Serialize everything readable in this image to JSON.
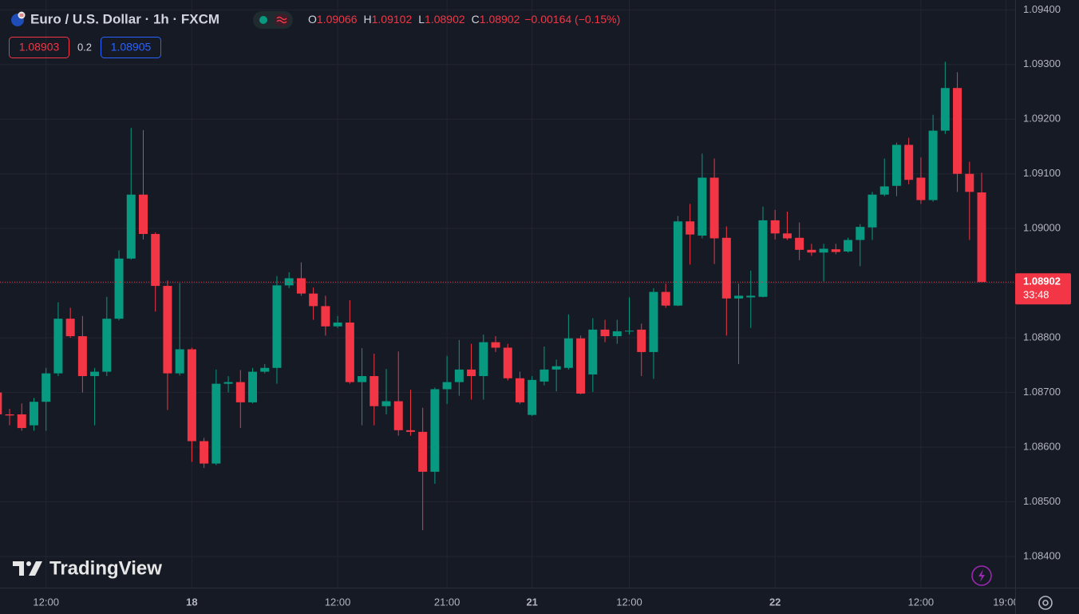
{
  "header": {
    "symbol": "Euro / U.S. Dollar · 1h · FXCM",
    "ohlc": [
      {
        "label": "O",
        "value": "1.09066"
      },
      {
        "label": "H",
        "value": "1.09102"
      },
      {
        "label": "L",
        "value": "1.08902"
      },
      {
        "label": "C",
        "value": "1.08902"
      }
    ],
    "change": "−0.00164 (−0.15%)",
    "bid": "1.08903",
    "spread": "0.2",
    "ask": "1.08905"
  },
  "logo": "TradingView",
  "chart_data": {
    "type": "candlestick",
    "categories": [
      null,
      null,
      null,
      null,
      "12:00",
      null,
      null,
      null,
      null,
      null,
      null,
      null,
      null,
      null,
      null,
      null,
      "18",
      null,
      null,
      null,
      null,
      null,
      null,
      null,
      null,
      null,
      null,
      null,
      "12:00",
      null,
      null,
      null,
      null,
      null,
      null,
      null,
      null,
      "21:00",
      null,
      null,
      null,
      null,
      null,
      null,
      "21",
      null,
      null,
      null,
      null,
      null,
      null,
      null,
      "12:00",
      null,
      null,
      null,
      null,
      null,
      null,
      null,
      null,
      null,
      null,
      null,
      "22",
      null,
      null,
      null,
      null,
      null,
      null,
      null,
      null,
      null,
      null,
      null,
      "12:00",
      null,
      null,
      null,
      null,
      null,
      null,
      "19:00"
    ],
    "open": [
      1.087,
      1.0866,
      1.0866,
      1.0864,
      1.08683,
      1.08735,
      1.08835,
      1.08803,
      1.0873,
      1.08738,
      1.08835,
      1.08945,
      1.09062,
      1.0899,
      1.08895,
      1.08735,
      1.08779,
      1.08611,
      1.0857,
      1.08716,
      1.08719,
      1.08682,
      1.08738,
      1.08745,
      1.08896,
      1.08909,
      1.08881,
      1.08858,
      1.08821,
      1.08828,
      1.08719,
      1.0873,
      1.08675,
      1.08684,
      1.08631,
      1.08628,
      1.08555,
      1.08706,
      1.08719,
      1.08742,
      1.0873,
      1.08792,
      1.08782,
      1.08726,
      1.08659,
      1.0872,
      1.08742,
      1.08745,
      1.08799,
      1.08733,
      1.08815,
      1.08803,
      1.08812,
      1.08815,
      1.08774,
      1.08884,
      1.08859,
      1.09013,
      1.08987,
      1.09093,
      1.08983,
      1.08872,
      1.08874,
      1.08875,
      1.09015,
      1.08991,
      1.08983,
      1.08961,
      1.08956,
      1.08962,
      1.08958,
      1.08979,
      1.09002,
      1.09062,
      1.09078,
      1.09153,
      1.09093,
      1.09052,
      1.09179,
      1.09257,
      1.091,
      1.09066,
      null,
      null
    ],
    "high": [
      1.0871,
      1.0867,
      1.0868,
      1.0869,
      1.08745,
      1.08865,
      1.08855,
      1.0884,
      1.08745,
      1.08875,
      1.0896,
      1.09184,
      1.0918,
      1.08993,
      1.08905,
      1.089,
      1.08782,
      1.08617,
      1.08742,
      1.0873,
      1.08741,
      1.08745,
      1.08752,
      1.08913,
      1.0892,
      1.08938,
      1.08892,
      1.08877,
      1.0884,
      1.08869,
      1.08781,
      1.08771,
      1.08743,
      1.08775,
      1.08705,
      1.08672,
      1.08709,
      1.08767,
      1.08796,
      1.08789,
      1.08806,
      1.08803,
      1.08789,
      1.08738,
      1.0873,
      1.08784,
      1.0876,
      1.08843,
      1.08804,
      1.08836,
      1.08833,
      1.08833,
      1.08874,
      1.08826,
      1.08891,
      1.08899,
      1.09023,
      1.09045,
      1.09137,
      1.09128,
      1.09004,
      1.08899,
      1.08923,
      1.0904,
      1.09034,
      1.09031,
      1.09011,
      1.08972,
      1.08972,
      1.08972,
      1.08983,
      1.09008,
      1.09067,
      1.09128,
      1.09157,
      1.09166,
      1.0913,
      1.09208,
      1.09305,
      1.09286,
      1.09122,
      1.09102,
      null,
      null
    ],
    "low": [
      1.0864,
      1.0864,
      1.0863,
      1.0863,
      1.0863,
      1.0873,
      1.088,
      1.087,
      1.0864,
      1.0873,
      1.08832,
      1.08943,
      1.0898,
      1.08848,
      1.08668,
      1.08731,
      1.08573,
      1.08562,
      1.08567,
      1.087,
      1.08635,
      1.0868,
      1.08735,
      1.08716,
      1.08891,
      1.08877,
      1.08833,
      1.08804,
      1.08818,
      1.08716,
      1.0864,
      1.0864,
      1.0866,
      1.08621,
      1.08621,
      1.08448,
      1.08533,
      1.08679,
      1.08694,
      1.08687,
      1.08687,
      1.08774,
      1.08722,
      1.08679,
      1.08657,
      1.08713,
      1.08702,
      1.08742,
      1.08697,
      1.08701,
      1.08792,
      1.08789,
      1.08806,
      1.0873,
      1.08725,
      1.08855,
      1.08858,
      1.08934,
      1.08982,
      1.08935,
      1.08804,
      1.08752,
      1.08818,
      1.08874,
      1.0898,
      1.08979,
      1.08942,
      1.0895,
      1.08903,
      1.08953,
      1.08956,
      1.08931,
      1.08979,
      1.09059,
      1.09059,
      1.09081,
      1.09045,
      1.09049,
      1.09173,
      1.09067,
      1.08979,
      1.08902,
      null,
      null
    ],
    "close": [
      1.0866,
      1.08658,
      1.08635,
      1.08683,
      1.08735,
      1.08835,
      1.08803,
      1.0873,
      1.08738,
      1.08835,
      1.08945,
      1.09062,
      1.0899,
      1.08895,
      1.08735,
      1.08779,
      1.08611,
      1.0857,
      1.08716,
      1.08719,
      1.08682,
      1.08738,
      1.08745,
      1.08896,
      1.08909,
      1.08881,
      1.08858,
      1.08821,
      1.08828,
      1.08719,
      1.0873,
      1.08675,
      1.08684,
      1.08631,
      1.08628,
      1.08555,
      1.08706,
      1.08719,
      1.08742,
      1.0873,
      1.08792,
      1.08782,
      1.08726,
      1.08682,
      1.08723,
      1.08742,
      1.08748,
      1.08799,
      1.08698,
      1.08815,
      1.08803,
      1.08812,
      1.08813,
      1.08774,
      1.08884,
      1.08859,
      1.09013,
      1.08989,
      1.09093,
      1.08982,
      1.08872,
      1.08877,
      1.08877,
      1.09015,
      1.08991,
      1.08982,
      1.08961,
      1.08956,
      1.08963,
      1.08957,
      1.08979,
      1.09003,
      1.09062,
      1.09077,
      1.09153,
      1.09089,
      1.09052,
      1.09179,
      1.09257,
      1.091,
      1.09067,
      1.08902,
      null,
      null
    ],
    "up_color": "#089981",
    "down_color": "#f23645",
    "ylim": [
      1.08343,
      1.09418
    ],
    "yticks": [
      {
        "value": 1.094,
        "label": "1.09400"
      },
      {
        "value": 1.093,
        "label": "1.09300"
      },
      {
        "value": 1.092,
        "label": "1.09200"
      },
      {
        "value": 1.091,
        "label": "1.09100"
      },
      {
        "value": 1.09,
        "label": "1.09000"
      },
      {
        "value": 1.089,
        "label": "1.08900"
      },
      {
        "value": 1.088,
        "label": "1.08800"
      },
      {
        "value": 1.087,
        "label": "1.08700"
      },
      {
        "value": 1.086,
        "label": "1.08600"
      },
      {
        "value": 1.085,
        "label": "1.08500"
      },
      {
        "value": 1.084,
        "label": "1.08400"
      }
    ],
    "grid": true,
    "last_price": 1.08902,
    "countdown": "33:48"
  }
}
